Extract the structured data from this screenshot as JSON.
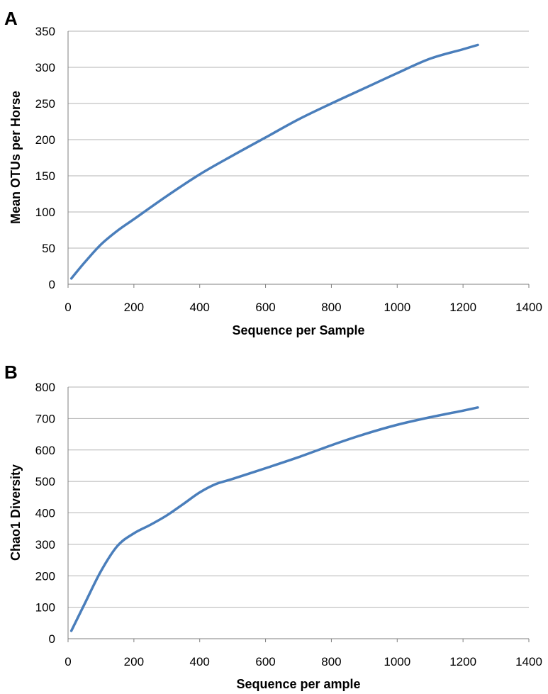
{
  "chart_data": [
    {
      "type": "line",
      "panel": "A",
      "title": "",
      "xlabel": "Sequence per Sample",
      "ylabel": "Mean OTUs per Horse",
      "xlim": [
        0,
        1400
      ],
      "ylim": [
        0,
        350
      ],
      "xticks": [
        0,
        200,
        400,
        600,
        800,
        1000,
        1200,
        1400
      ],
      "yticks": [
        0,
        50,
        100,
        150,
        200,
        250,
        300,
        350
      ],
      "grid": "horizontal",
      "legend": "none",
      "color": "#4a7ebb",
      "series": [
        {
          "x": [
            10,
            50,
            100,
            150,
            200,
            300,
            400,
            500,
            600,
            700,
            800,
            900,
            1000,
            1100,
            1200,
            1245
          ],
          "y": [
            8,
            30,
            55,
            74,
            90,
            122,
            152,
            178,
            203,
            228,
            250,
            271,
            292,
            312,
            325,
            331
          ]
        }
      ]
    },
    {
      "type": "line",
      "panel": "B",
      "title": "",
      "xlabel": "Sequence per ample",
      "ylabel": "Chao1 Diversity",
      "xlim": [
        0,
        1400
      ],
      "ylim": [
        0,
        800
      ],
      "xticks": [
        0,
        200,
        400,
        600,
        800,
        1000,
        1200,
        1400
      ],
      "yticks": [
        0,
        100,
        200,
        300,
        400,
        500,
        600,
        700,
        800
      ],
      "grid": "horizontal",
      "legend": "none",
      "color": "#4a7ebb",
      "series": [
        {
          "x": [
            10,
            50,
            100,
            150,
            200,
            250,
            300,
            350,
            400,
            450,
            500,
            600,
            700,
            800,
            900,
            1000,
            1100,
            1200,
            1245
          ],
          "y": [
            25,
            110,
            215,
            295,
            335,
            362,
            392,
            428,
            465,
            492,
            508,
            542,
            577,
            615,
            650,
            680,
            704,
            725,
            735
          ]
        }
      ]
    }
  ]
}
